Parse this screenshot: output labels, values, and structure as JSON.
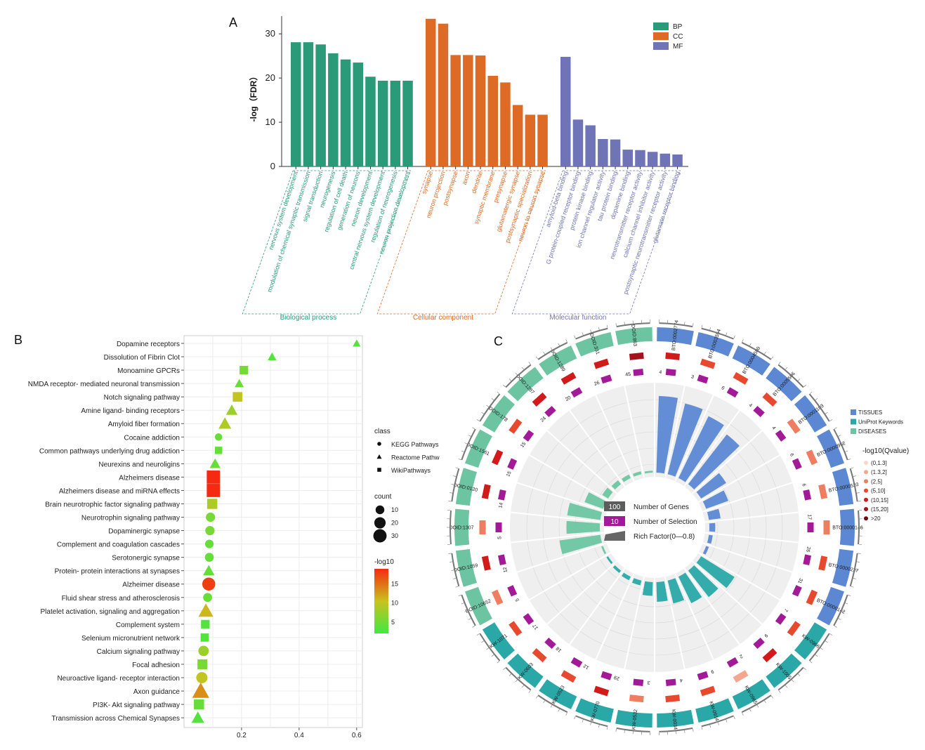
{
  "panels": {
    "a": {
      "label": "A",
      "ylabel": "-log（FDR）",
      "legend": [
        {
          "key": "BP",
          "color": "#2a9a78"
        },
        {
          "key": "CC",
          "color": "#dd6a25"
        },
        {
          "key": "MF",
          "color": "#6f74b6"
        }
      ],
      "group_labels": {
        "BP": "Biological process",
        "CC": "Cellular component",
        "MF": "Molecular function"
      }
    },
    "b": {
      "label": "B",
      "legend_class_title": "class",
      "legend_classes": [
        {
          "name": "KEGG Pathways",
          "shape": "circle"
        },
        {
          "name": "Reactome Pathw",
          "shape": "triangle"
        },
        {
          "name": "WikiPathways",
          "shape": "square"
        }
      ],
      "legend_count_title": "count",
      "legend_count_values": [
        10,
        20,
        30
      ],
      "legend_color_title": "-log10",
      "legend_color_ticks": [
        5,
        10,
        15
      ]
    },
    "c": {
      "label": "C",
      "center_legend": [
        {
          "box": "100",
          "text": "Number of Genes"
        },
        {
          "box": "10",
          "text": "Number of Selection"
        },
        {
          "box": "",
          "text": "Rich Factor(0—0.8)"
        }
      ],
      "category_legend": [
        {
          "name": "TISSUES",
          "color": "#5b87d3"
        },
        {
          "name": "UniProt Keywords",
          "color": "#2aa8a8"
        },
        {
          "name": "DISEASES",
          "color": "#6cc5a0"
        }
      ],
      "q_legend_title": "-log10(Qvalue)",
      "q_legend": [
        {
          "label": "(0,1.3]",
          "color": "#f9d6cc"
        },
        {
          "label": "(1.3,2]",
          "color": "#f4a68f"
        },
        {
          "label": "(2,5]",
          "color": "#ef7d5f"
        },
        {
          "label": "(5,10]",
          "color": "#e8492e"
        },
        {
          "label": "(10,15]",
          "color": "#d21a1a"
        },
        {
          "label": "(15,20]",
          "color": "#a6111b"
        },
        {
          "label": ">20",
          "color": "#6b0a12"
        }
      ]
    }
  },
  "chart_data": [
    {
      "type": "bar",
      "title": "A",
      "ylabel": "-log（FDR）",
      "ylim": [
        0,
        34
      ],
      "yticks": [
        0,
        10,
        20,
        30
      ],
      "series": [
        {
          "name": "BP",
          "color": "#2a9a78",
          "categories": [
            "nervous system development",
            "modulation of chemical synaptic transmission",
            "signal transduction",
            "neurogenesis",
            "regulation of cell death",
            "generation of neurons",
            "neuron development",
            "central nervous system development",
            "regulation of neurogenesis",
            "neuron projection development"
          ],
          "values": [
            28.1,
            28.1,
            27.6,
            25.6,
            24.2,
            23.5,
            20.3,
            19.4,
            19.4,
            19.4
          ]
        },
        {
          "name": "CC",
          "color": "#dd6a25",
          "categories": [
            "synapse",
            "neuron projection",
            "postsynapse",
            "axon",
            "dendrite",
            "synaptic membrane",
            "presynapse",
            "glutamatergic synapse",
            "postsynaptic specialization",
            "neuron to neuron synapse"
          ],
          "values": [
            33.4,
            32.3,
            25.2,
            25.2,
            25.1,
            20.5,
            19.0,
            13.9,
            11.7,
            11.7
          ]
        },
        {
          "name": "MF",
          "color": "#6f74b6",
          "categories": [
            "amyloid-beta binding",
            "G protein-coupled receptor binding",
            "protein kinase binding",
            "ion channel regulator activity",
            "tau protein binding",
            "dopamine binding",
            "neurotransmitter receptor activity",
            "calcium channel inhibitor activity",
            "postsynaptic neurotransmitter receptor activity",
            "glutamate receptor binding"
          ],
          "values": [
            24.8,
            10.6,
            9.3,
            6.2,
            6.1,
            3.8,
            3.7,
            3.3,
            2.9,
            2.7
          ]
        }
      ]
    },
    {
      "type": "scatter",
      "title": "B",
      "xlabel": "",
      "xlim": [
        0.0,
        0.62
      ],
      "xticks": [
        0.2,
        0.4,
        0.6
      ],
      "color_scale": [
        "#41e841",
        "#c9c21e",
        "#f52a10"
      ],
      "points": [
        {
          "term": "Dopamine receptors",
          "x": 0.6,
          "count": 3,
          "neglog10": 4,
          "shape": "triangle"
        },
        {
          "term": "Dissolution of Fibrin Clot",
          "x": 0.306,
          "count": 4,
          "neglog10": 4,
          "shape": "triangle"
        },
        {
          "term": "Monoamine GPCRs",
          "x": 0.208,
          "count": 8,
          "neglog10": 6,
          "shape": "square"
        },
        {
          "term": "NMDA receptor- mediated neuronal transmission",
          "x": 0.192,
          "count": 5,
          "neglog10": 5,
          "shape": "triangle"
        },
        {
          "term": "Notch signaling pathway",
          "x": 0.186,
          "count": 11,
          "neglog10": 10,
          "shape": "square"
        },
        {
          "term": "Amine ligand- binding receptors",
          "x": 0.166,
          "count": 10,
          "neglog10": 8,
          "shape": "triangle"
        },
        {
          "term": "Amyloid fiber formation",
          "x": 0.142,
          "count": 13,
          "neglog10": 9,
          "shape": "triangle"
        },
        {
          "term": "Cocaine addiction",
          "x": 0.12,
          "count": 5,
          "neglog10": 5,
          "shape": "circle"
        },
        {
          "term": "Common pathways underlying drug addiction",
          "x": 0.12,
          "count": 5,
          "neglog10": 5,
          "shape": "square"
        },
        {
          "term": "Neurexins and neuroligins",
          "x": 0.108,
          "count": 8,
          "neglog10": 5,
          "shape": "triangle"
        },
        {
          "term": "Alzheimers disease",
          "x": 0.102,
          "count": 26,
          "neglog10": 18,
          "shape": "square"
        },
        {
          "term": "Alzheimers disease and miRNA effects",
          "x": 0.102,
          "count": 26,
          "neglog10": 18,
          "shape": "square"
        },
        {
          "term": "Brain neurotrophic factor signaling pathway",
          "x": 0.098,
          "count": 13,
          "neglog10": 9,
          "shape": "square"
        },
        {
          "term": "Neurotrophin signaling pathway",
          "x": 0.092,
          "count": 10,
          "neglog10": 6,
          "shape": "circle"
        },
        {
          "term": "Dopaminergic synapse",
          "x": 0.09,
          "count": 10,
          "neglog10": 6,
          "shape": "circle"
        },
        {
          "term": "Complement and coagulation cascades",
          "x": 0.088,
          "count": 8,
          "neglog10": 5,
          "shape": "circle"
        },
        {
          "term": "Serotonergic synapse",
          "x": 0.088,
          "count": 9,
          "neglog10": 5,
          "shape": "circle"
        },
        {
          "term": "Protein- protein interactions at synapses",
          "x": 0.086,
          "count": 10,
          "neglog10": 5,
          "shape": "triangle"
        },
        {
          "term": "Alzheimer disease",
          "x": 0.086,
          "count": 25,
          "neglog10": 17,
          "shape": "circle"
        },
        {
          "term": "Fluid shear stress and atherosclerosis",
          "x": 0.082,
          "count": 9,
          "neglog10": 5,
          "shape": "circle"
        },
        {
          "term": "Platelet activation, signaling and aggregation",
          "x": 0.076,
          "count": 20,
          "neglog10": 11,
          "shape": "triangle"
        },
        {
          "term": "Complement system",
          "x": 0.074,
          "count": 8,
          "neglog10": 4,
          "shape": "square"
        },
        {
          "term": "Selenium micronutrient network",
          "x": 0.072,
          "count": 7,
          "neglog10": 4,
          "shape": "square"
        },
        {
          "term": "Calcium signaling pathway",
          "x": 0.068,
          "count": 14,
          "neglog10": 8,
          "shape": "circle"
        },
        {
          "term": "Focal adhesion",
          "x": 0.064,
          "count": 12,
          "neglog10": 6,
          "shape": "square"
        },
        {
          "term": "Neuroactive ligand- receptor interaction",
          "x": 0.062,
          "count": 17,
          "neglog10": 10,
          "shape": "circle"
        },
        {
          "term": "Axon guidance",
          "x": 0.058,
          "count": 28,
          "neglog10": 13,
          "shape": "triangle"
        },
        {
          "term": "PI3K- Akt signaling pathway",
          "x": 0.052,
          "count": 13,
          "neglog10": 5,
          "shape": "square"
        },
        {
          "term": "Transmission across Chemical Synapses",
          "x": 0.048,
          "count": 13,
          "neglog10": 4,
          "shape": "triangle"
        }
      ]
    },
    {
      "type": "circular-bar",
      "title": "C",
      "categories": [
        {
          "id": "BTO:0002774",
          "group": "TISSUES",
          "selection": "4",
          "rich": 0.78,
          "q": 4
        },
        {
          "id": "BTO:0003554",
          "group": "TISSUES",
          "selection": "3",
          "rich": 0.74,
          "q": 3
        },
        {
          "id": "BTO:0004580",
          "group": "TISSUES",
          "selection": "6",
          "rich": 0.7,
          "q": 3
        },
        {
          "id": "BTO:0005506",
          "group": "TISSUES",
          "selection": "4",
          "rich": 0.64,
          "q": 3
        },
        {
          "id": "BTO:0001103",
          "group": "TISSUES",
          "selection": "4",
          "rich": 0.3,
          "q": 2
        },
        {
          "id": "BTO:0000952",
          "group": "TISSUES",
          "selection": "6",
          "rich": 0.24,
          "q": 2
        },
        {
          "id": "BTO:0000523",
          "group": "TISSUES",
          "selection": "6",
          "rich": 0.12,
          "q": 2
        },
        {
          "id": "BTO:0000146",
          "group": "TISSUES",
          "selection": "17",
          "rich": 0.06,
          "q": 2
        },
        {
          "id": "BTO:0000227",
          "group": "TISSUES",
          "selection": "26",
          "rich": 0.04,
          "q": 3
        },
        {
          "id": "BTO:0000142",
          "group": "TISSUES",
          "selection": "31",
          "rich": 0.03,
          "q": 3
        },
        {
          "id": "KW-0966",
          "group": "UniProt Keywords",
          "selection": "7",
          "rich": 0.4,
          "q": 3
        },
        {
          "id": "KW-1005",
          "group": "UniProt Keywords",
          "selection": "9",
          "rich": 0.34,
          "q": 4
        },
        {
          "id": "KW-0965",
          "group": "UniProt Keywords",
          "selection": "2",
          "rich": 0.3,
          "q": 1
        },
        {
          "id": "KW-0914",
          "group": "UniProt Keywords",
          "selection": "9",
          "rich": 0.24,
          "q": 3
        },
        {
          "id": "KW-0034",
          "group": "UniProt Keywords",
          "selection": "4",
          "rich": 0.2,
          "q": 3
        },
        {
          "id": "KW-0532",
          "group": "UniProt Keywords",
          "selection": "3",
          "rich": 0.14,
          "q": 2
        },
        {
          "id": "KW-0770",
          "group": "UniProt Keywords",
          "selection": "29",
          "rich": 0.05,
          "q": 4
        },
        {
          "id": "KW-0523",
          "group": "UniProt Keywords",
          "selection": "12",
          "rich": 0.04,
          "q": 3
        },
        {
          "id": "KW-0603",
          "group": "UniProt Keywords",
          "selection": "18",
          "rich": 0.03,
          "q": 3
        },
        {
          "id": "KW-1071",
          "group": "UniProt Keywords",
          "selection": "17",
          "rich": 0.02,
          "q": 3
        },
        {
          "id": "DOID:10652",
          "group": "DISEASES",
          "selection": "5",
          "rich": 0.02,
          "q": 2
        },
        {
          "id": "DOID:1059",
          "group": "DISEASES",
          "selection": "12",
          "rich": 0.42,
          "q": 4
        },
        {
          "id": "DOID:1307",
          "group": "DISEASES",
          "selection": "5",
          "rich": 0.34,
          "q": 2
        },
        {
          "id": "DOID:0120",
          "group": "DISEASES",
          "selection": "14",
          "rich": 0.34,
          "q": 4
        },
        {
          "id": "DOID:1561",
          "group": "DISEASES",
          "selection": "15",
          "rich": 0.2,
          "q": 4
        },
        {
          "id": "DOID:178",
          "group": "DISEASES",
          "selection": "15",
          "rich": 0.07,
          "q": 3
        },
        {
          "id": "DOID:1287",
          "group": "DISEASES",
          "selection": "24",
          "rich": 0.05,
          "q": 4
        },
        {
          "id": "DOID:1289",
          "group": "DISEASES",
          "selection": "20",
          "rich": 0.04,
          "q": 4
        },
        {
          "id": "DOID:331",
          "group": "DISEASES",
          "selection": "26",
          "rich": 0.03,
          "q": 4
        },
        {
          "id": "DOID:863",
          "group": "DISEASES",
          "selection": "45",
          "rich": 0.02,
          "q": 5
        }
      ]
    }
  ]
}
